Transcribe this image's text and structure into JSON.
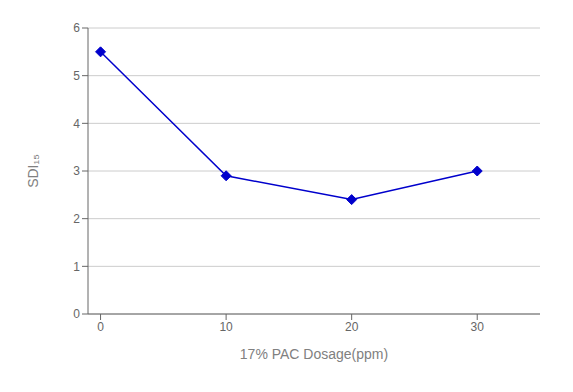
{
  "chart_data": {
    "type": "line",
    "x": [
      0,
      10,
      20,
      30
    ],
    "values": [
      5.5,
      2.9,
      2.4,
      3.0
    ],
    "color": "#0000CC",
    "marker": "diamond",
    "xlabel": "17% PAC Dosage(ppm)",
    "ylabel": "SDI₁₅",
    "xlim": [
      -1,
      35
    ],
    "ylim": [
      0,
      6
    ],
    "xticks": [
      0,
      10,
      20,
      30
    ],
    "yticks": [
      0,
      1,
      2,
      3,
      4,
      5,
      6
    ],
    "grid": true
  }
}
